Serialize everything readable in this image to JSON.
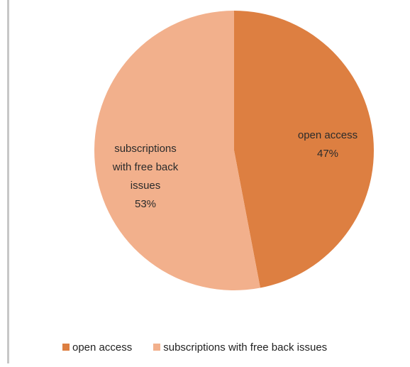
{
  "chart_data": {
    "type": "pie",
    "title": "",
    "slices": [
      {
        "label": "open access",
        "value": 47,
        "percent_label": "47%",
        "color": "#dd7f41"
      },
      {
        "label": "subscriptions with free back issues",
        "value": 53,
        "percent_label": "53%",
        "color": "#f2b08c"
      }
    ],
    "slice_labels": {
      "open": [
        "open access",
        "47%"
      ],
      "subs": [
        "subscriptions",
        "with free back",
        "issues",
        "53%"
      ]
    },
    "legend": {
      "position": "bottom",
      "items": [
        {
          "label": "open access",
          "color": "#dd7f41"
        },
        {
          "label": "subscriptions with free back issues",
          "color": "#f2b08c"
        }
      ]
    }
  }
}
